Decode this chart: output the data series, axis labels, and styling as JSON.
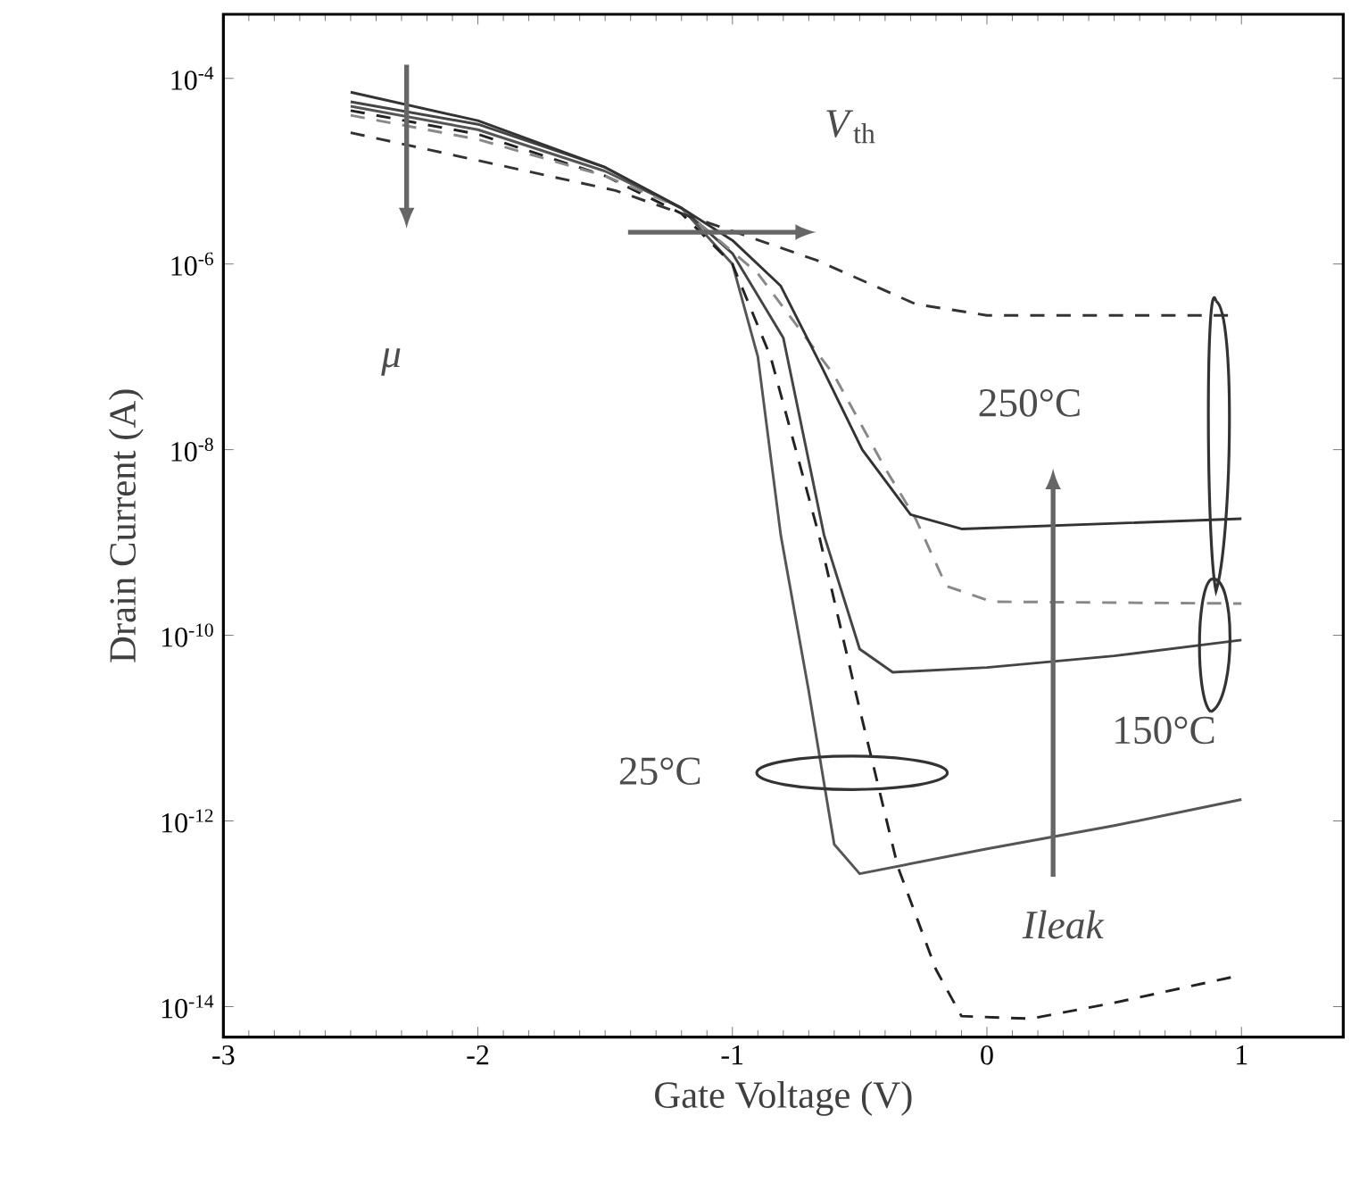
{
  "chart_data": {
    "type": "line",
    "xlabel": "Gate Voltage (V)",
    "ylabel": "Drain Current (A)",
    "log": "y",
    "xlim": [
      -3,
      1.4
    ],
    "ylim": [
      4.7e-15,
      0.00049
    ],
    "xticks": [
      -3,
      -2,
      -1,
      0,
      1
    ],
    "yticks": [
      {
        "value": 0.0001,
        "label": "10$^{-4}$"
      },
      {
        "value": 1e-06,
        "label": "10$^{-6}$"
      },
      {
        "value": 1e-08,
        "label": "10$^{-8}$"
      },
      {
        "value": 1e-10,
        "label": "10$^{-10}$"
      },
      {
        "value": 1e-12,
        "label": "10$^{-12}$"
      },
      {
        "value": 1e-14,
        "label": "10$^{-14}$"
      }
    ],
    "series": [
      {
        "color": "#555555",
        "line_style": "solid",
        "x": [
          -2.5,
          -2,
          -1.5,
          -1.2,
          -1.0,
          -0.9,
          -0.81,
          -0.7,
          -0.6,
          -0.5,
          0,
          0.5,
          1
        ],
        "values": [
          5e-05,
          2.8e-05,
          1e-05,
          4e-06,
          1e-06,
          1e-07,
          1.2e-09,
          2.5e-11,
          5.6e-13,
          2.7e-13,
          5e-13,
          8.9e-13,
          1.7e-12
        ]
      },
      {
        "color": "#222222",
        "line_style": "dashed",
        "x": [
          -2.5,
          -2,
          -1.5,
          -1.2,
          -1.0,
          -0.85,
          -0.66,
          -0.5,
          -0.35,
          -0.2,
          -0.1,
          0.17,
          0.5,
          0.97
        ],
        "values": [
          4.5e-05,
          2.5e-05,
          8.9e-06,
          3.5e-06,
          1e-06,
          1e-07,
          1.2e-09,
          1.6e-11,
          3.2e-13,
          2.5e-14,
          7.9e-15,
          7.4e-15,
          1.1e-14,
          2.1e-14
        ]
      },
      {
        "color": "#444444",
        "line_style": "solid",
        "x": [
          -2.5,
          -2,
          -1.5,
          -1.2,
          -1.0,
          -0.8,
          -0.64,
          -0.5,
          -0.37,
          0,
          0.5,
          1
        ],
        "values": [
          5.6e-05,
          3.2e-05,
          1.1e-05,
          4e-06,
          1.3e-06,
          1.6e-07,
          1.2e-09,
          7.1e-11,
          4e-11,
          4.5e-11,
          6e-11,
          8.9e-11
        ]
      },
      {
        "color": "#888888",
        "line_style": "dashed",
        "x": [
          -2.5,
          -2,
          -1.5,
          -1.2,
          -0.9,
          -0.6,
          -0.4,
          -0.28,
          -0.16,
          0.02,
          1
        ],
        "values": [
          4e-05,
          2.2e-05,
          8.9e-06,
          4e-06,
          7.9e-07,
          6.3e-08,
          6.3e-09,
          1.8e-09,
          3.4e-10,
          2.3e-10,
          2.2e-10
        ]
      },
      {
        "color": "#333333",
        "line_style": "solid",
        "x": [
          -2.5,
          -2,
          -1.5,
          -1.2,
          -1.0,
          -0.81,
          -0.65,
          -0.49,
          -0.3,
          -0.1,
          1
        ],
        "values": [
          7.1e-05,
          3.5e-05,
          1.1e-05,
          4e-06,
          1.8e-06,
          5.8e-07,
          7.9e-08,
          1e-08,
          2e-09,
          1.4e-09,
          1.8e-09
        ]
      },
      {
        "color": "#333333",
        "line_style": "dashed",
        "x": [
          -2.5,
          -1.46,
          -1.2,
          -0.67,
          -0.28,
          0,
          0.97
        ],
        "values": [
          2.6e-05,
          6.2e-06,
          3.5e-06,
          1.1e-06,
          3.7e-07,
          2.8e-07,
          2.8e-07
        ]
      }
    ],
    "annotations": [
      "*μ*",
      "*V*$_{th}$",
      "250°C",
      "150°C",
      "25°C",
      "*Ileak*"
    ]
  }
}
